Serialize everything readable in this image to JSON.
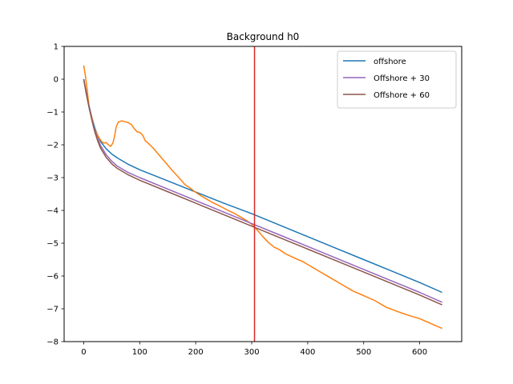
{
  "chart_data": {
    "type": "line",
    "title": "Background h0",
    "xlabel": "",
    "ylabel": "",
    "xlim": [
      -35,
      675
    ],
    "ylim": [
      -8,
      1
    ],
    "xticks": [
      0,
      100,
      200,
      300,
      400,
      500,
      600
    ],
    "yticks": [
      1,
      0,
      -1,
      -2,
      -3,
      -4,
      -5,
      -6,
      -7,
      -8
    ],
    "grid": false,
    "legend": "top-right",
    "vline": {
      "x": 305,
      "color": "#d62728"
    },
    "series": [
      {
        "name": "offshore",
        "color": "#1f77b4",
        "in_legend": true,
        "points": [
          [
            0,
            0
          ],
          [
            5,
            -0.45
          ],
          [
            10,
            -0.85
          ],
          [
            15,
            -1.2
          ],
          [
            20,
            -1.5
          ],
          [
            25,
            -1.72
          ],
          [
            30,
            -1.9
          ],
          [
            40,
            -2.12
          ],
          [
            50,
            -2.28
          ],
          [
            60,
            -2.4
          ],
          [
            80,
            -2.6
          ],
          [
            100,
            -2.76
          ],
          [
            150,
            -3.1
          ],
          [
            200,
            -3.44
          ],
          [
            250,
            -3.78
          ],
          [
            300,
            -4.1
          ],
          [
            350,
            -4.45
          ],
          [
            400,
            -4.8
          ],
          [
            450,
            -5.15
          ],
          [
            500,
            -5.5
          ],
          [
            550,
            -5.85
          ],
          [
            600,
            -6.2
          ],
          [
            640,
            -6.5
          ]
        ]
      },
      {
        "name": "",
        "color": "#ff7f0e",
        "in_legend": false,
        "points": [
          [
            0,
            0.42
          ],
          [
            3,
            0.1
          ],
          [
            6,
            -0.3
          ],
          [
            8,
            -0.6
          ],
          [
            10,
            -0.9
          ],
          [
            12,
            -1.0
          ],
          [
            15,
            -1.2
          ],
          [
            18,
            -1.45
          ],
          [
            20,
            -1.55
          ],
          [
            24,
            -1.68
          ],
          [
            28,
            -1.8
          ],
          [
            32,
            -1.9
          ],
          [
            36,
            -1.95
          ],
          [
            40,
            -1.93
          ],
          [
            44,
            -2.0
          ],
          [
            48,
            -2.05
          ],
          [
            52,
            -1.95
          ],
          [
            55,
            -1.75
          ],
          [
            58,
            -1.45
          ],
          [
            62,
            -1.3
          ],
          [
            68,
            -1.27
          ],
          [
            75,
            -1.3
          ],
          [
            80,
            -1.33
          ],
          [
            85,
            -1.38
          ],
          [
            90,
            -1.5
          ],
          [
            95,
            -1.6
          ],
          [
            100,
            -1.62
          ],
          [
            105,
            -1.7
          ],
          [
            110,
            -1.88
          ],
          [
            115,
            -1.95
          ],
          [
            120,
            -2.03
          ],
          [
            125,
            -2.12
          ],
          [
            130,
            -2.22
          ],
          [
            135,
            -2.32
          ],
          [
            140,
            -2.42
          ],
          [
            145,
            -2.52
          ],
          [
            150,
            -2.62
          ],
          [
            160,
            -2.82
          ],
          [
            170,
            -3.0
          ],
          [
            180,
            -3.2
          ],
          [
            190,
            -3.32
          ],
          [
            200,
            -3.45
          ],
          [
            210,
            -3.56
          ],
          [
            220,
            -3.66
          ],
          [
            230,
            -3.76
          ],
          [
            240,
            -3.84
          ],
          [
            250,
            -3.93
          ],
          [
            260,
            -4.02
          ],
          [
            270,
            -4.1
          ],
          [
            280,
            -4.2
          ],
          [
            290,
            -4.3
          ],
          [
            300,
            -4.42
          ],
          [
            310,
            -4.6
          ],
          [
            320,
            -4.8
          ],
          [
            330,
            -4.98
          ],
          [
            340,
            -5.12
          ],
          [
            350,
            -5.2
          ],
          [
            360,
            -5.32
          ],
          [
            370,
            -5.4
          ],
          [
            380,
            -5.48
          ],
          [
            390,
            -5.55
          ],
          [
            400,
            -5.65
          ],
          [
            420,
            -5.85
          ],
          [
            440,
            -6.05
          ],
          [
            460,
            -6.25
          ],
          [
            480,
            -6.45
          ],
          [
            500,
            -6.6
          ],
          [
            520,
            -6.75
          ],
          [
            540,
            -6.95
          ],
          [
            560,
            -7.08
          ],
          [
            580,
            -7.2
          ],
          [
            600,
            -7.3
          ],
          [
            620,
            -7.45
          ],
          [
            640,
            -7.6
          ]
        ]
      },
      {
        "name": "Offshore + 30",
        "color": "#9467bd",
        "in_legend": true,
        "points": [
          [
            0,
            0
          ],
          [
            5,
            -0.47
          ],
          [
            10,
            -0.88
          ],
          [
            15,
            -1.25
          ],
          [
            20,
            -1.58
          ],
          [
            25,
            -1.82
          ],
          [
            30,
            -2.02
          ],
          [
            40,
            -2.3
          ],
          [
            50,
            -2.5
          ],
          [
            60,
            -2.65
          ],
          [
            80,
            -2.85
          ],
          [
            100,
            -3.0
          ],
          [
            150,
            -3.35
          ],
          [
            200,
            -3.7
          ],
          [
            250,
            -4.05
          ],
          [
            300,
            -4.4
          ],
          [
            350,
            -4.75
          ],
          [
            400,
            -5.1
          ],
          [
            450,
            -5.45
          ],
          [
            500,
            -5.8
          ],
          [
            550,
            -6.15
          ],
          [
            600,
            -6.5
          ],
          [
            640,
            -6.8
          ]
        ]
      },
      {
        "name": "Offshore + 60",
        "color": "#8c564b",
        "in_legend": true,
        "points": [
          [
            0,
            0
          ],
          [
            5,
            -0.48
          ],
          [
            10,
            -0.9
          ],
          [
            15,
            -1.28
          ],
          [
            20,
            -1.62
          ],
          [
            25,
            -1.88
          ],
          [
            30,
            -2.1
          ],
          [
            40,
            -2.38
          ],
          [
            50,
            -2.58
          ],
          [
            60,
            -2.72
          ],
          [
            80,
            -2.92
          ],
          [
            100,
            -3.08
          ],
          [
            150,
            -3.43
          ],
          [
            200,
            -3.78
          ],
          [
            250,
            -4.13
          ],
          [
            300,
            -4.48
          ],
          [
            350,
            -4.83
          ],
          [
            400,
            -5.18
          ],
          [
            450,
            -5.53
          ],
          [
            500,
            -5.88
          ],
          [
            550,
            -6.23
          ],
          [
            600,
            -6.58
          ],
          [
            640,
            -6.88
          ]
        ]
      }
    ]
  }
}
